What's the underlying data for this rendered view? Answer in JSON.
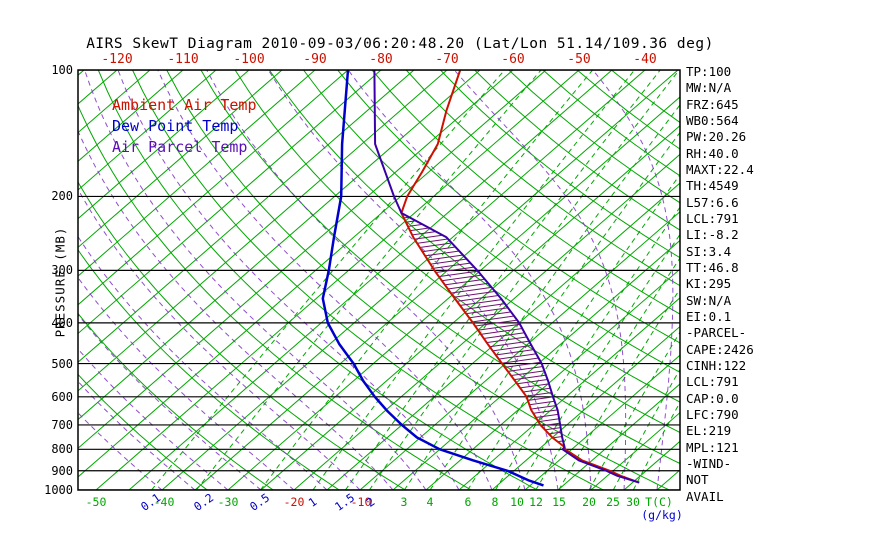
{
  "title": "AIRS SkewT Diagram 2010-09-03/06:20:48.20 (Lat/Lon 51.14/109.36 deg)",
  "legend": [
    {
      "label": "Ambient Air Temp",
      "color": "#cc1100"
    },
    {
      "label": "Dew Point Temp",
      "color": "#0000cc"
    },
    {
      "label": "Air Parcel Temp",
      "color": "#5a10b4"
    }
  ],
  "y_axis": {
    "label": "PRESSURE (MB)",
    "ticks": [
      100,
      200,
      300,
      400,
      500,
      600,
      700,
      800,
      900,
      1000
    ]
  },
  "x_axis_top": {
    "color": "#cc1100",
    "ticks": [
      -120,
      -110,
      -100,
      -90,
      -80,
      -70,
      -60,
      -50,
      -40
    ]
  },
  "x_axis_bottom": {
    "labels": [
      {
        "text": "-50",
        "color": "#00a800",
        "x": 96,
        "rot": 0
      },
      {
        "text": "0.1",
        "color": "#0000cc",
        "x": 151,
        "rot": -35
      },
      {
        "text": "-40",
        "color": "#00a800",
        "x": 164,
        "rot": 0
      },
      {
        "text": "0.2",
        "color": "#0000cc",
        "x": 204,
        "rot": -35
      },
      {
        "text": "-30",
        "color": "#00a800",
        "x": 228,
        "rot": 0
      },
      {
        "text": "0.5",
        "color": "#0000cc",
        "x": 260,
        "rot": -35
      },
      {
        "text": "-20",
        "color": "#cc1100",
        "x": 294,
        "rot": 0
      },
      {
        "text": "1",
        "color": "#0000cc",
        "x": 313,
        "rot": -35
      },
      {
        "text": "1.5",
        "color": "#0000cc",
        "x": 345,
        "rot": -35
      },
      {
        "text": "-10",
        "color": "#cc1100",
        "x": 361,
        "rot": 0
      },
      {
        "text": "2",
        "color": "#0000cc",
        "x": 371,
        "rot": -35
      },
      {
        "text": "3",
        "color": "#00a800",
        "x": 404,
        "rot": 0
      },
      {
        "text": "4",
        "color": "#00a800",
        "x": 430,
        "rot": 0
      },
      {
        "text": "6",
        "color": "#00a800",
        "x": 468,
        "rot": 0
      },
      {
        "text": "8",
        "color": "#00a800",
        "x": 495,
        "rot": 0
      },
      {
        "text": "10",
        "color": "#00a800",
        "x": 517,
        "rot": 0
      },
      {
        "text": "12",
        "color": "#00a800",
        "x": 536,
        "rot": 0
      },
      {
        "text": "15",
        "color": "#00a800",
        "x": 559,
        "rot": 0
      },
      {
        "text": "20",
        "color": "#00a800",
        "x": 589,
        "rot": 0
      },
      {
        "text": "25",
        "color": "#00a800",
        "x": 613,
        "rot": 0
      },
      {
        "text": "30",
        "color": "#00a800",
        "x": 633,
        "rot": 0
      },
      {
        "text": "T(C)",
        "color": "#00a800",
        "x": 659,
        "rot": 0
      },
      {
        "text": "(g/kg)",
        "color": "#0000cc",
        "x": 662,
        "rot": 0,
        "dy": 13
      }
    ]
  },
  "stats_panel": {
    "lines": [
      "TP:100",
      "MW:N/A",
      "FRZ:645",
      "WB0:564",
      "PW:20.26",
      "RH:40.0",
      "MAXT:22.4",
      "TH:4549",
      "L57:6.6",
      "LCL:791",
      "LI:-8.2",
      "SI:3.4",
      "TT:46.8",
      "KI:295",
      "SW:N/A",
      "EI:0.1",
      "-PARCEL-",
      "CAPE:2426",
      "CINH:122",
      "LCL:791",
      "CAP:0.0",
      "LFC:790",
      "EL:219",
      "MPL:121",
      "-WIND-",
      "NOT",
      "AVAIL"
    ]
  },
  "chart_data": {
    "type": "line",
    "title": "AIRS SkewT Diagram 2010-09-03/06:20:48.20 (Lat/Lon 51.14/109.36 deg)",
    "xlabel": "Temperature (C)",
    "ylabel": "PRESSURE (MB)",
    "pressure_range_mb": [
      100,
      1000
    ],
    "temp_ticks_top_C": [
      -120,
      -110,
      -100,
      -90,
      -80,
      -70,
      -60,
      -50,
      -40
    ],
    "series": [
      {
        "name": "Ambient Air Temp",
        "color": "#cc1100",
        "width": 2,
        "points": [
          [
            960,
            31
          ],
          [
            925,
            27
          ],
          [
            900,
            24.5
          ],
          [
            850,
            18.5
          ],
          [
            800,
            14
          ],
          [
            790,
            13.5
          ],
          [
            750,
            10
          ],
          [
            700,
            6
          ],
          [
            645,
            2
          ],
          [
            600,
            -1
          ],
          [
            550,
            -5.5
          ],
          [
            500,
            -10.5
          ],
          [
            450,
            -16
          ],
          [
            400,
            -22
          ],
          [
            350,
            -29
          ],
          [
            300,
            -37
          ],
          [
            250,
            -46
          ],
          [
            219,
            -52
          ],
          [
            200,
            -54
          ],
          [
            175,
            -56
          ],
          [
            150,
            -58.5
          ],
          [
            125,
            -63
          ],
          [
            100,
            -68
          ]
        ]
      },
      {
        "name": "Dew Point Temp",
        "color": "#0000cc",
        "width": 2.5,
        "points": [
          [
            975,
            17
          ],
          [
            950,
            14
          ],
          [
            900,
            9
          ],
          [
            850,
            2
          ],
          [
            800,
            -5
          ],
          [
            750,
            -10.5
          ],
          [
            700,
            -15
          ],
          [
            650,
            -19.5
          ],
          [
            600,
            -24
          ],
          [
            550,
            -28.5
          ],
          [
            500,
            -33
          ],
          [
            450,
            -38.5
          ],
          [
            400,
            -44
          ],
          [
            350,
            -49
          ],
          [
            300,
            -53
          ],
          [
            250,
            -58
          ],
          [
            200,
            -64
          ],
          [
            150,
            -73
          ],
          [
            100,
            -85
          ]
        ]
      },
      {
        "name": "Air Parcel Temp",
        "color": "#3a00a8",
        "width": 2,
        "points": [
          [
            960,
            31
          ],
          [
            925,
            26.5
          ],
          [
            900,
            24
          ],
          [
            850,
            18
          ],
          [
            800,
            13.6
          ],
          [
            790,
            13.5
          ],
          [
            750,
            11.5
          ],
          [
            700,
            9
          ],
          [
            645,
            6
          ],
          [
            600,
            3
          ],
          [
            550,
            -0.5
          ],
          [
            500,
            -4.5
          ],
          [
            450,
            -9.5
          ],
          [
            400,
            -15
          ],
          [
            350,
            -22
          ],
          [
            300,
            -30.5
          ],
          [
            250,
            -41
          ],
          [
            219,
            -52
          ],
          [
            200,
            -56
          ],
          [
            150,
            -68
          ],
          [
            100,
            -81
          ]
        ]
      }
    ],
    "grid": {
      "isotherms_C": {
        "min": -130,
        "max": 40,
        "step": 5,
        "color": "#00a800"
      },
      "dry_adiabats_K": {
        "min": 240,
        "max": 440,
        "step": 10,
        "color": "#00a800"
      },
      "moist_adiabats_C": {
        "min": -40,
        "max": 40,
        "step": 5,
        "color": "#7b2fc4"
      },
      "mixing_ratio_gkg": [
        0.1,
        0.2,
        0.5,
        1,
        1.5,
        2,
        3,
        4,
        6,
        8,
        10,
        12,
        15,
        20,
        25,
        30
      ]
    },
    "cape_region": {
      "from_mb": 790,
      "to_mb": 219,
      "hatch_color": "#6f0f6f"
    },
    "indices": {
      "CAPE": 2426,
      "CINH": 122,
      "LCL": 791,
      "LFC": 790,
      "EL": 219,
      "MPL": 121,
      "LI": -8.2,
      "SI": 3.4,
      "TT": 46.8,
      "PW": 20.26,
      "RH": 40.0,
      "MAXT": 22.4,
      "FRZ": 645
    }
  }
}
